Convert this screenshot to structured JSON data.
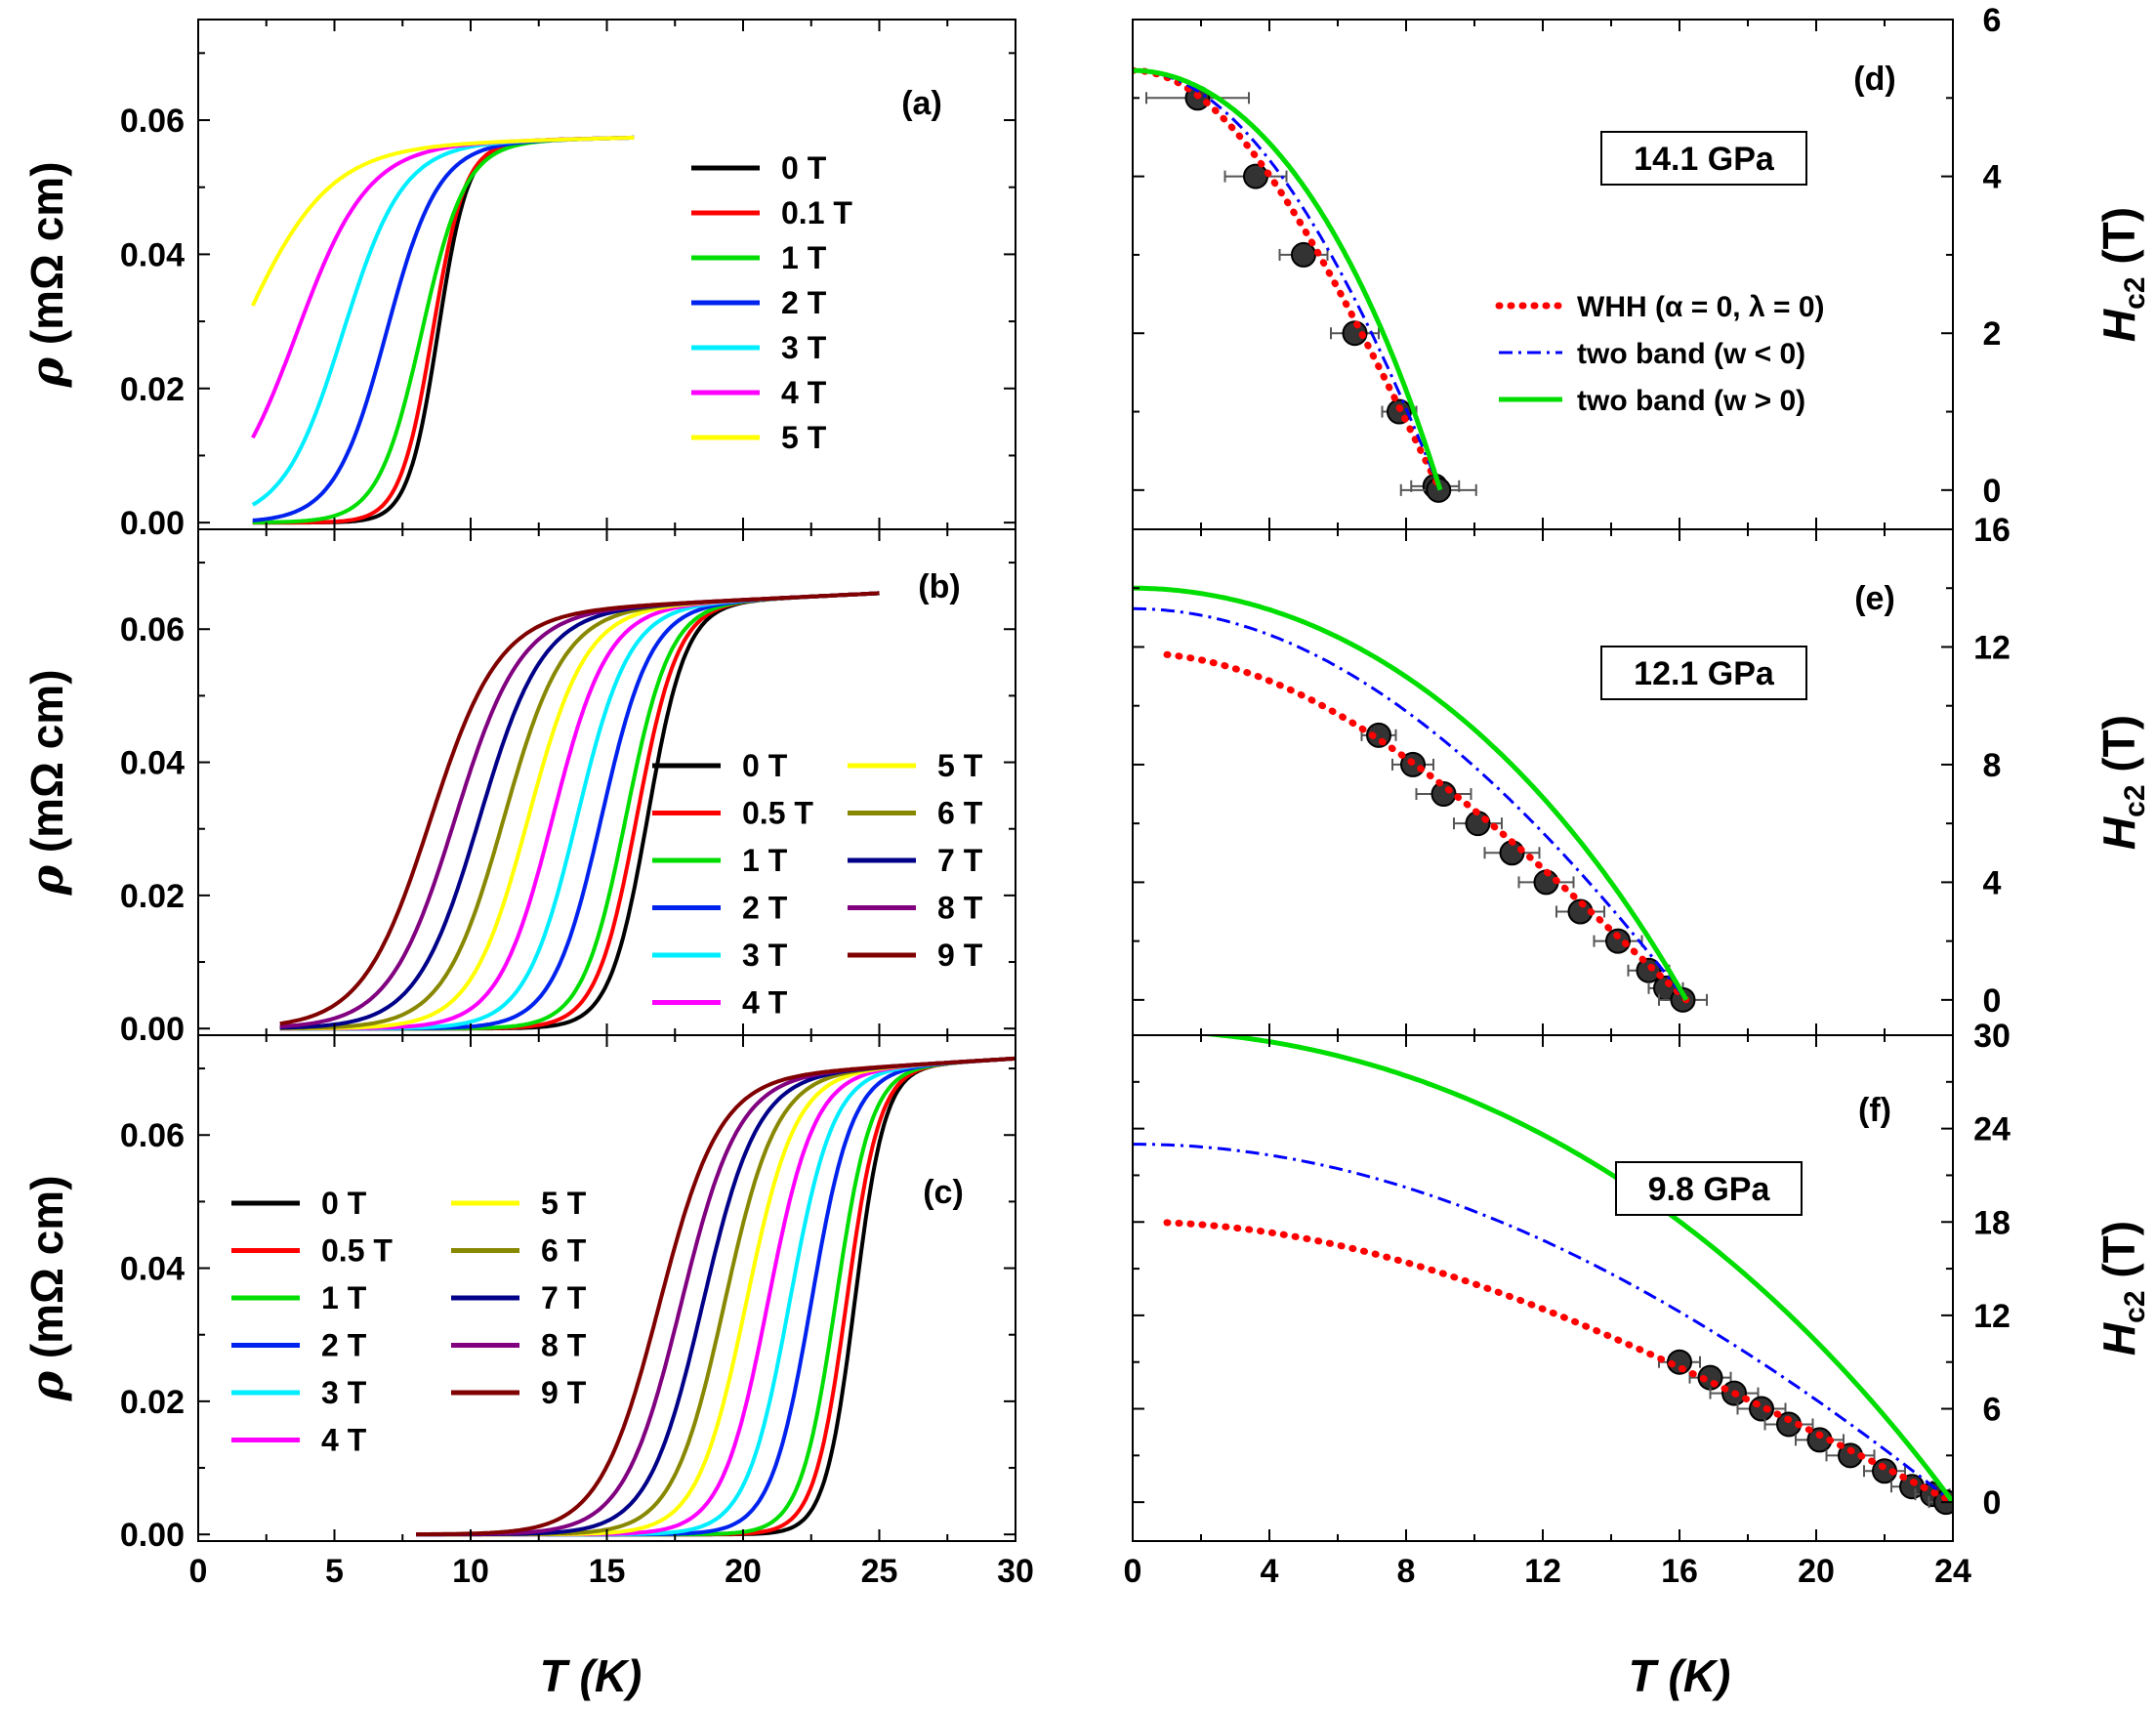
{
  "figure": {
    "xlabel_left": "T (K)",
    "xlabel_right": "T (K)"
  },
  "colors": {
    "0 T": "#000000",
    "0.1 T": "#ff0000",
    "0.5 T": "#ff0000",
    "1 T": "#00dd00",
    "2 T": "#0022ee",
    "3 T": "#00eeff",
    "4 T": "#ff00ff",
    "5 T": "#ffff00",
    "6 T": "#888800",
    "7 T": "#000088",
    "8 T": "#800080",
    "9 T": "#800000",
    "whh": "#ff0000",
    "two_band_neg": "#0000ff",
    "two_band_pos": "#00dd00",
    "data_point": "#333333"
  },
  "chart_data": [
    {
      "panel": "a",
      "label": "(a)",
      "type": "line",
      "title": "",
      "xlabel": "T (K)",
      "ylabel": "ρ (mΩ cm)",
      "xlim": [
        0,
        30
      ],
      "ylim": [
        -0.001,
        0.075
      ],
      "xticks": [
        "0",
        "5",
        "10",
        "15",
        "20",
        "25",
        "30"
      ],
      "yticks": [
        "0.00",
        "0.02",
        "0.04",
        "0.06"
      ],
      "legend_position": "upper-right",
      "x_range": [
        2,
        16
      ],
      "rho_normal": 0.056,
      "rho_slope": 0.0001,
      "series": [
        {
          "name": "0 T",
          "tc": 8.8,
          "width": 0.55
        },
        {
          "name": "0.1 T",
          "tc": 8.6,
          "width": 0.6
        },
        {
          "name": "1 T",
          "tc": 8.2,
          "width": 0.8
        },
        {
          "name": "2 T",
          "tc": 6.9,
          "width": 0.95
        },
        {
          "name": "3 T",
          "tc": 5.3,
          "width": 1.1
        },
        {
          "name": "4 T",
          "tc": 3.6,
          "width": 1.3
        },
        {
          "name": "5 T",
          "tc": 1.5,
          "width": 1.6
        }
      ]
    },
    {
      "panel": "b",
      "label": "(b)",
      "type": "line",
      "title": "",
      "xlabel": "T (K)",
      "ylabel": "ρ (mΩ cm)",
      "xlim": [
        0,
        30
      ],
      "ylim": [
        -0.001,
        0.075
      ],
      "xticks": [
        "0",
        "5",
        "10",
        "15",
        "20",
        "25",
        "30"
      ],
      "yticks": [
        "0.00",
        "0.02",
        "0.04",
        "0.06"
      ],
      "legend_position": "right, two columns",
      "x_range": [
        3,
        25
      ],
      "rho_normal": 0.061,
      "rho_slope": 0.0002,
      "series": [
        {
          "name": "0 T",
          "tc": 16.5,
          "width": 0.7
        },
        {
          "name": "0.5 T",
          "tc": 16.1,
          "width": 0.75
        },
        {
          "name": "1 T",
          "tc": 15.7,
          "width": 0.8
        },
        {
          "name": "2 T",
          "tc": 14.8,
          "width": 0.9
        },
        {
          "name": "3 T",
          "tc": 13.9,
          "width": 0.95
        },
        {
          "name": "4 T",
          "tc": 13.0,
          "width": 1.0
        },
        {
          "name": "5 T",
          "tc": 12.1,
          "width": 1.05
        },
        {
          "name": "6 T",
          "tc": 11.2,
          "width": 1.1
        },
        {
          "name": "7 T",
          "tc": 10.3,
          "width": 1.15
        },
        {
          "name": "8 T",
          "tc": 9.4,
          "width": 1.2
        },
        {
          "name": "9 T",
          "tc": 8.5,
          "width": 1.25
        }
      ]
    },
    {
      "panel": "c",
      "label": "(c)",
      "type": "line",
      "title": "",
      "xlabel": "T (K)",
      "ylabel": "ρ (mΩ cm)",
      "xlim": [
        0,
        30
      ],
      "ylim": [
        -0.001,
        0.075
      ],
      "xticks": [
        "0",
        "5",
        "10",
        "15",
        "20",
        "25",
        "30"
      ],
      "yticks": [
        "0.00",
        "0.02",
        "0.04",
        "0.06"
      ],
      "legend_position": "left, two columns",
      "x_range": [
        8,
        30
      ],
      "rho_normal": 0.066,
      "rho_slope": 0.00025,
      "series": [
        {
          "name": "0 T",
          "tc": 24.1,
          "width": 0.55
        },
        {
          "name": "0.5 T",
          "tc": 23.8,
          "width": 0.6
        },
        {
          "name": "1 T",
          "tc": 23.4,
          "width": 0.65
        },
        {
          "name": "2 T",
          "tc": 22.5,
          "width": 0.75
        },
        {
          "name": "3 T",
          "tc": 21.7,
          "width": 0.8
        },
        {
          "name": "4 T",
          "tc": 20.9,
          "width": 0.85
        },
        {
          "name": "5 T",
          "tc": 20.1,
          "width": 0.9
        },
        {
          "name": "6 T",
          "tc": 19.3,
          "width": 0.95
        },
        {
          "name": "7 T",
          "tc": 18.5,
          "width": 1.0
        },
        {
          "name": "8 T",
          "tc": 17.7,
          "width": 1.05
        },
        {
          "name": "9 T",
          "tc": 16.9,
          "width": 1.1
        }
      ]
    },
    {
      "panel": "d",
      "label": "(d)",
      "type": "scatter+line",
      "pressure": "14.1 GPa",
      "xlabel": "T (K)",
      "ylabel": "Hc2 (T)",
      "xlim": [
        0,
        24
      ],
      "ylim": [
        -0.5,
        6
      ],
      "yticks": [
        "0",
        "2",
        "4",
        "6"
      ],
      "legend_position": "right",
      "legend": [
        "WHH (α = 0, λ = 0)",
        "two band (w < 0)",
        "two band (w > 0)"
      ],
      "points": [
        {
          "x": 1.9,
          "y": 5.0,
          "xerr": 1.5
        },
        {
          "x": 3.6,
          "y": 4.0,
          "xerr": 0.9
        },
        {
          "x": 5.0,
          "y": 3.0,
          "xerr": 0.7
        },
        {
          "x": 6.5,
          "y": 2.0,
          "xerr": 0.7
        },
        {
          "x": 7.8,
          "y": 1.0,
          "xerr": 0.5
        },
        {
          "x": 8.85,
          "y": 0.05,
          "xerr": 0.7
        },
        {
          "x": 8.95,
          "y": 0.0,
          "xerr": 1.1
        }
      ],
      "tc": 9.0,
      "h0_whh": 5.35,
      "h0_tb_neg": 5.35,
      "h0_tb_pos": 5.35,
      "fit_start": 0.0
    },
    {
      "panel": "e",
      "label": "(e)",
      "type": "scatter+line",
      "pressure": "12.1 GPa",
      "xlabel": "T (K)",
      "ylabel": "Hc2 (T)",
      "xlim": [
        0,
        24
      ],
      "ylim": [
        -1.2,
        16
      ],
      "yticks": [
        "0",
        "4",
        "8",
        "12",
        "16"
      ],
      "points": [
        {
          "x": 7.2,
          "y": 9.0,
          "xerr": 0.5
        },
        {
          "x": 8.2,
          "y": 8.0,
          "xerr": 0.6
        },
        {
          "x": 9.1,
          "y": 7.0,
          "xerr": 0.8
        },
        {
          "x": 10.1,
          "y": 6.0,
          "xerr": 0.7
        },
        {
          "x": 11.1,
          "y": 5.0,
          "xerr": 0.8
        },
        {
          "x": 12.1,
          "y": 4.0,
          "xerr": 0.8
        },
        {
          "x": 13.1,
          "y": 3.0,
          "xerr": 0.7
        },
        {
          "x": 14.2,
          "y": 2.0,
          "xerr": 0.7
        },
        {
          "x": 15.1,
          "y": 1.0,
          "xerr": 0.6
        },
        {
          "x": 15.6,
          "y": 0.4,
          "xerr": 0.5
        },
        {
          "x": 16.1,
          "y": 0.0,
          "xerr": 0.7
        }
      ],
      "tc": 16.2,
      "h0_whh": 11.8,
      "h0_tb_neg": 13.3,
      "h0_tb_pos": 14.0,
      "fit_start": 1.0
    },
    {
      "panel": "f",
      "label": "(f)",
      "type": "scatter+line",
      "pressure": "9.8 GPa",
      "xlabel": "T (K)",
      "ylabel": "Hc2 (T)",
      "xlim": [
        0,
        24
      ],
      "ylim": [
        -2.5,
        30
      ],
      "yticks": [
        "0",
        "6",
        "12",
        "18",
        "24",
        "30"
      ],
      "xticks": [
        "0",
        "4",
        "8",
        "12",
        "16",
        "20",
        "24"
      ],
      "points": [
        {
          "x": 16.0,
          "y": 9.0,
          "xerr": 0.6
        },
        {
          "x": 16.9,
          "y": 8.0,
          "xerr": 0.6
        },
        {
          "x": 17.6,
          "y": 7.0,
          "xerr": 0.7
        },
        {
          "x": 18.4,
          "y": 6.0,
          "xerr": 0.7
        },
        {
          "x": 19.2,
          "y": 5.0,
          "xerr": 0.7
        },
        {
          "x": 20.1,
          "y": 4.0,
          "xerr": 0.7
        },
        {
          "x": 21.0,
          "y": 3.0,
          "xerr": 0.7
        },
        {
          "x": 22.0,
          "y": 2.0,
          "xerr": 0.6
        },
        {
          "x": 22.8,
          "y": 1.0,
          "xerr": 0.6
        },
        {
          "x": 23.4,
          "y": 0.5,
          "xerr": 0.5
        },
        {
          "x": 23.8,
          "y": 0.0,
          "xerr": 0.5
        }
      ],
      "tc": 24.0,
      "h0_whh": 18.0,
      "h0_tb_neg": 23.0,
      "h0_tb_pos": 30.3,
      "fit_start": 1.0
    }
  ]
}
